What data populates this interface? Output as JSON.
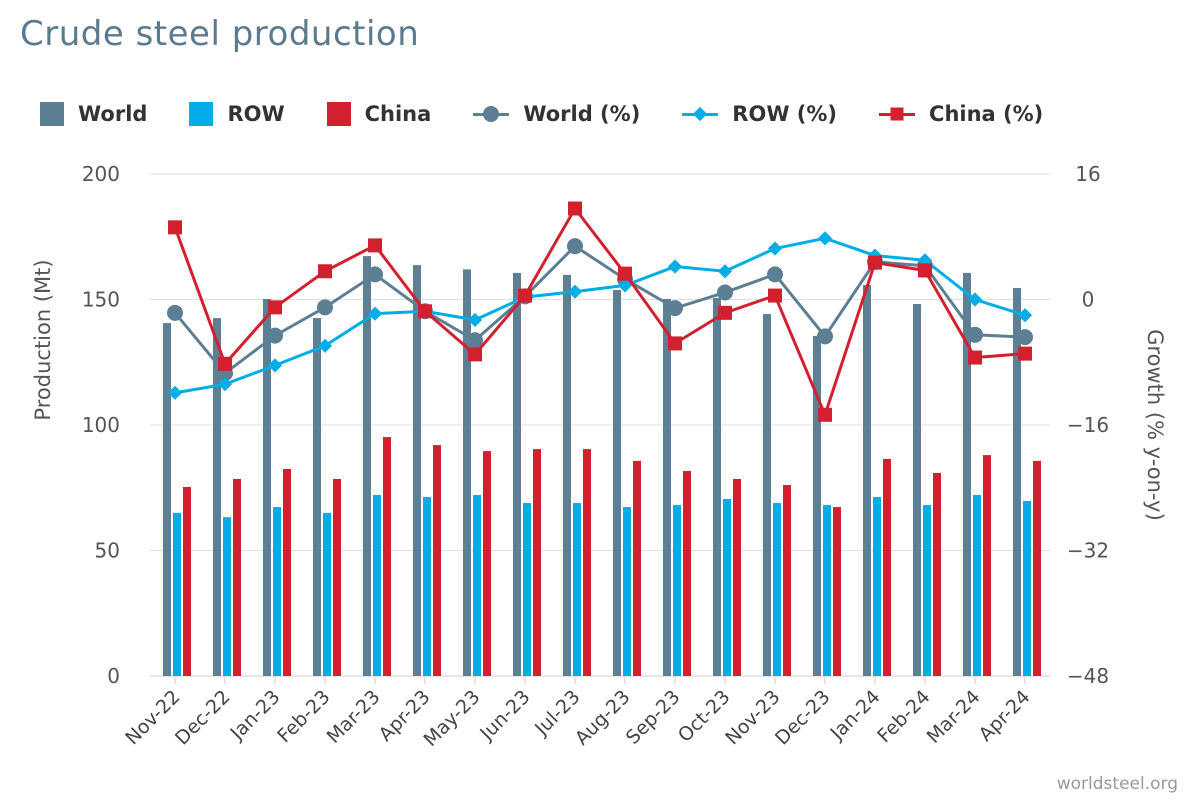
{
  "title": "Crude steel production",
  "credit": "worldsteel.org",
  "colors": {
    "world": "#5d7f93",
    "row": "#00ade6",
    "china": "#d3202f"
  },
  "legend": [
    "World",
    "ROW",
    "China",
    "World (%)",
    "ROW (%)",
    "China (%)"
  ],
  "chart_data": {
    "type": "bar+line",
    "title": "Crude steel production",
    "ylabel": "Production (Mt)",
    "y2label": "Growth (% y-on-y)",
    "ylim": [
      0,
      200
    ],
    "y2lim": [
      -48,
      16
    ],
    "yticks": [
      0,
      50,
      100,
      150,
      200
    ],
    "y2ticks": [
      -48,
      -32,
      -16,
      0,
      16
    ],
    "y2tick_labels": [
      "−48",
      "−32",
      "−16",
      "0",
      "16"
    ],
    "grid": true,
    "legend_position": "top",
    "categories": [
      "Nov-22",
      "Dec-22",
      "Jan-23",
      "Feb-23",
      "Mar-23",
      "Apr-23",
      "May-23",
      "Jun-23",
      "Jul-23",
      "Aug-23",
      "Sep-23",
      "Oct-23",
      "Nov-23",
      "Dec-23",
      "Jan-24",
      "Feb-24",
      "Mar-24",
      "Apr-24"
    ],
    "bars": [
      {
        "name": "World",
        "values": [
          140.6,
          142.6,
          150.2,
          142.6,
          167.3,
          163.7,
          162.0,
          160.6,
          159.8,
          153.8,
          150.2,
          150.6,
          144.2,
          135.5,
          155.8,
          148.2,
          160.6,
          154.6
        ]
      },
      {
        "name": "ROW",
        "values": [
          65.0,
          63.3,
          67.3,
          65.0,
          72.1,
          71.3,
          72.1,
          68.9,
          68.9,
          67.3,
          68.1,
          70.5,
          68.9,
          68.1,
          71.3,
          68.1,
          72.1,
          69.7
        ]
      },
      {
        "name": "China",
        "values": [
          75.3,
          78.5,
          82.5,
          78.5,
          95.2,
          92.0,
          89.6,
          90.4,
          90.4,
          85.7,
          81.7,
          78.5,
          76.1,
          67.3,
          86.5,
          80.9,
          88.0,
          85.7
        ]
      }
    ],
    "lines": [
      {
        "name": "World (%)",
        "values": [
          -1.7,
          -9.4,
          -4.6,
          -1.0,
          3.2,
          -1.5,
          -5.2,
          0.4,
          6.8,
          2.6,
          -1.1,
          0.9,
          3.2,
          -4.7,
          4.8,
          4.3,
          -4.5,
          -4.8
        ]
      },
      {
        "name": "ROW (%)",
        "values": [
          -11.9,
          -10.8,
          -8.4,
          -5.9,
          -1.8,
          -1.5,
          -2.6,
          0.3,
          1.0,
          1.8,
          4.2,
          3.6,
          6.5,
          7.8,
          5.6,
          5.0,
          0.0,
          -2.0
        ]
      },
      {
        "name": "China (%)",
        "values": [
          9.2,
          -8.2,
          -1.0,
          3.6,
          6.9,
          -1.5,
          -7.0,
          0.5,
          11.6,
          3.3,
          -5.6,
          -1.7,
          0.5,
          -14.7,
          4.7,
          3.7,
          -7.4,
          -6.9
        ]
      }
    ]
  }
}
